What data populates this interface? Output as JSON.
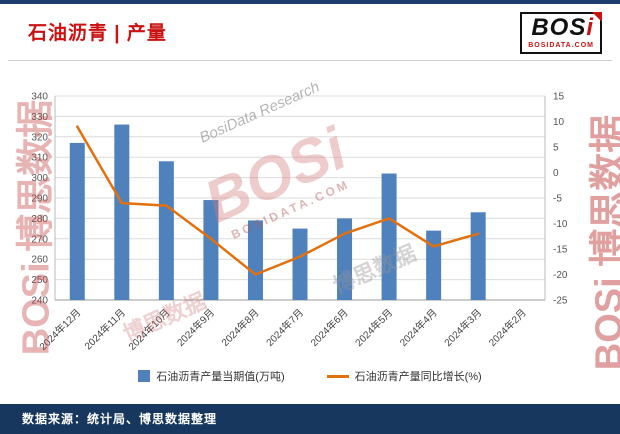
{
  "header": {
    "title": "石油沥青 | 产量",
    "logo": {
      "main": "BOS",
      "accent": "i",
      "domain": "BOSIDATA.COM"
    }
  },
  "chart_data": {
    "type": "bar",
    "title": "石油沥青 | 产量",
    "categories": [
      "2024年12月",
      "2024年11月",
      "2024年10月",
      "2024年9月",
      "2024年8月",
      "2024年7月",
      "2024年6月",
      "2024年5月",
      "2024年4月",
      "2024年3月",
      "2024年2月"
    ],
    "series": [
      {
        "name": "石油沥青产量当期值(万吨)",
        "type": "bar",
        "axis": "left",
        "color": "#4f81bd",
        "values": [
          317,
          326,
          308,
          289,
          279,
          275,
          280,
          302,
          274,
          283,
          null
        ]
      },
      {
        "name": "石油沥青产量同比增长(%)",
        "type": "line",
        "axis": "right",
        "color": "#e2700f",
        "values": [
          9,
          -6,
          -6.5,
          -13,
          -20,
          -16.5,
          -12,
          -9,
          -14.5,
          -12,
          null
        ]
      }
    ],
    "left_axis": {
      "min": 240,
      "max": 340,
      "step": 10
    },
    "right_axis": {
      "min": -25,
      "max": 15,
      "step": 5
    },
    "grid": true,
    "legend_position": "bottom"
  },
  "footer": {
    "source": "数据来源：统计局、博思数据整理"
  },
  "watermarks": {
    "side": "BOSi 博思数据",
    "center_logo": "BOSi",
    "center_domain": "BOSIDATA.COM",
    "research": "BosiData Research",
    "cn": "博思数据"
  },
  "colors": {
    "title": "#cc1111",
    "top_border": "#1f3c6e",
    "footer_bg": "#17375e",
    "bar": "#4f81bd",
    "line": "#e2700f"
  }
}
